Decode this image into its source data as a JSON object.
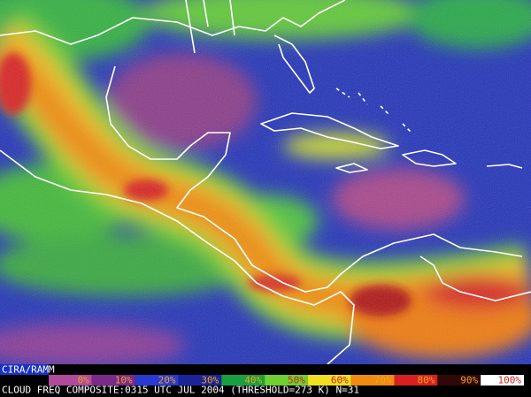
{
  "credit": "CIRA/RAMM",
  "caption": "CLOUD FREQ COMPOSITE:0315 UTC JUL 2004 (THRESHOLD=273 K) N=31",
  "scale": [
    {
      "label": "0%",
      "color": "#b04a9a"
    },
    {
      "label": "10%",
      "color": "#7a2a8a"
    },
    {
      "label": "20%",
      "color": "#2a3ad0"
    },
    {
      "label": "30%",
      "color": "#1a2498"
    },
    {
      "label": "40%",
      "color": "#18a040"
    },
    {
      "label": "50%",
      "color": "#70d030"
    },
    {
      "label": "60%",
      "color": "#f0e020"
    },
    {
      "label": "70%",
      "color": "#f08a10"
    },
    {
      "label": "80%",
      "color": "#d82020"
    },
    {
      "label": "90%",
      "color": "#300808"
    },
    {
      "label": "100%",
      "color": "#ffffff"
    }
  ]
}
